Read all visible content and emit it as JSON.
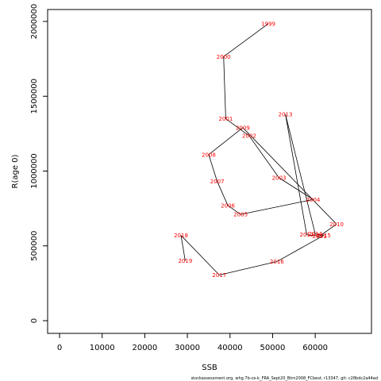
{
  "chart_data": {
    "type": "line",
    "xlabel": "SSB",
    "ylabel": "R(age 0)",
    "xlim": [
      0,
      65000
    ],
    "ylim": [
      0,
      2000000
    ],
    "x_ticks": [
      0,
      10000,
      20000,
      30000,
      40000,
      50000,
      60000
    ],
    "y_ticks": [
      0,
      500000,
      1000000,
      1500000,
      2000000
    ],
    "colors": {
      "line": "#000000",
      "labels": "#ff0000"
    },
    "points": [
      {
        "year": "1999",
        "ssb": 49000,
        "rec": 1985000
      },
      {
        "year": "2000",
        "ssb": 38500,
        "rec": 1765000
      },
      {
        "year": "2001",
        "ssb": 39000,
        "rec": 1350000
      },
      {
        "year": "2002",
        "ssb": 44500,
        "rec": 1235000
      },
      {
        "year": "2003",
        "ssb": 51500,
        "rec": 955000
      },
      {
        "year": "2004",
        "ssb": 59500,
        "rec": 810000
      },
      {
        "year": "2005",
        "ssb": 42500,
        "rec": 710000
      },
      {
        "year": "2006",
        "ssb": 39500,
        "rec": 770000
      },
      {
        "year": "2007",
        "ssb": 37000,
        "rec": 930000
      },
      {
        "year": "2008",
        "ssb": 35000,
        "rec": 1110000
      },
      {
        "year": "2009",
        "ssb": 43000,
        "rec": 1290000
      },
      {
        "year": "2010",
        "ssb": 65000,
        "rec": 645000
      },
      {
        "year": "2011",
        "ssb": 61000,
        "rec": 565000
      },
      {
        "year": "2012",
        "ssb": 58000,
        "rec": 575000
      },
      {
        "year": "2013",
        "ssb": 53000,
        "rec": 1380000
      },
      {
        "year": "2014",
        "ssb": 60000,
        "rec": 580000
      },
      {
        "year": "2015",
        "ssb": 62000,
        "rec": 570000
      },
      {
        "year": "2016",
        "ssb": 51000,
        "rec": 395000
      },
      {
        "year": "2017",
        "ssb": 37500,
        "rec": 305000
      },
      {
        "year": "2018",
        "ssb": 28500,
        "rec": 570000
      },
      {
        "year": "2019",
        "ssb": 29500,
        "rec": 400000
      }
    ]
  },
  "footer": "stockassessment.org, whg.7b-ce-k_FRA_Sept20_Btrn2008_FCbest, r13347, git: c28bdc2a44ad"
}
